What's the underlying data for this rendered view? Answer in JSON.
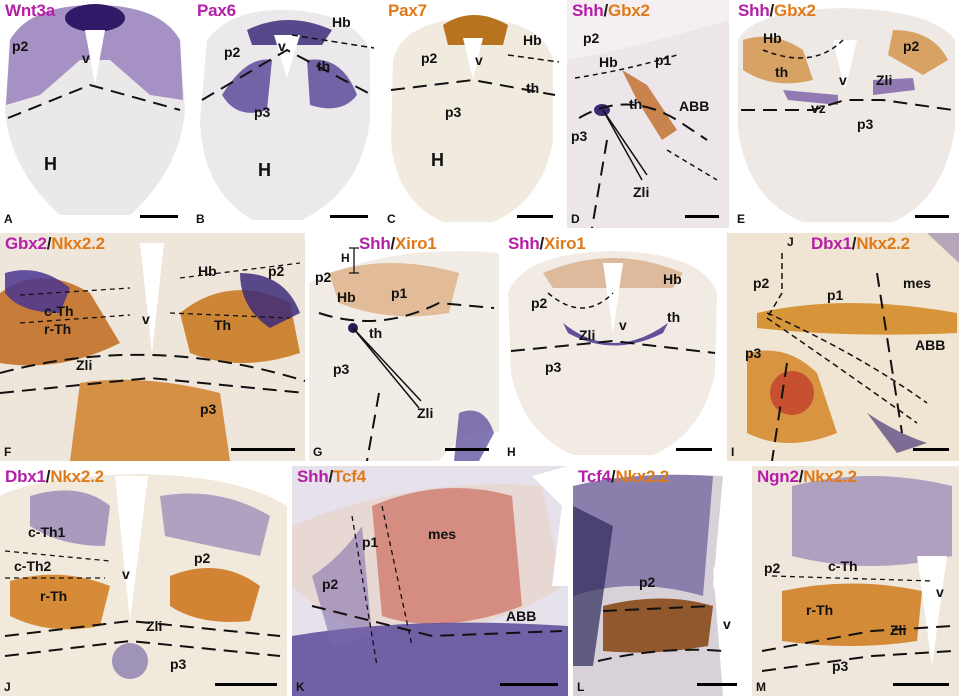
{
  "panels": [
    {
      "id": "A",
      "letter": "A",
      "stains": [
        {
          "text": "Wnt3a",
          "color": "magenta"
        }
      ],
      "labels": [
        "p2",
        "v",
        "H"
      ]
    },
    {
      "id": "B",
      "letter": "B",
      "stains": [
        {
          "text": "Pax6",
          "color": "magenta"
        }
      ],
      "labels": [
        "Hb",
        "v",
        "p2",
        "th",
        "p3",
        "H"
      ]
    },
    {
      "id": "C",
      "letter": "C",
      "stains": [
        {
          "text": "Pax7",
          "color": "orange"
        }
      ],
      "labels": [
        "Hb",
        "p2",
        "v",
        "th",
        "p3",
        "H"
      ]
    },
    {
      "id": "D",
      "letter": "D",
      "stains": [
        {
          "text": "Shh",
          "color": "magenta"
        },
        {
          "text": "Gbx2",
          "color": "orange"
        }
      ],
      "labels": [
        "p2",
        "Hb",
        "p1",
        "th",
        "ABB",
        "p3",
        "Zli"
      ]
    },
    {
      "id": "E",
      "letter": "E",
      "stains": [
        {
          "text": "Shh",
          "color": "magenta"
        },
        {
          "text": "Gbx2",
          "color": "orange"
        }
      ],
      "labels": [
        "Hb",
        "p2",
        "th",
        "v",
        "Zli",
        "vz",
        "p3"
      ]
    },
    {
      "id": "F",
      "letter": "F",
      "stains": [
        {
          "text": "Gbx2",
          "color": "magenta"
        },
        {
          "text": "Nkx2.2",
          "color": "orange"
        }
      ],
      "labels": [
        "Hb",
        "p2",
        "c-Th",
        "r-Th",
        "v",
        "Th",
        "Zli",
        "p3"
      ]
    },
    {
      "id": "G",
      "letter": "G",
      "stains": [
        {
          "text": "Shh",
          "color": "magenta"
        },
        {
          "text": "Xiro1",
          "color": "orange"
        }
      ],
      "labels": [
        "H",
        "p2",
        "Hb",
        "p1",
        "th",
        "p3",
        "Zli"
      ]
    },
    {
      "id": "H",
      "letter": "H",
      "stains": [
        {
          "text": "Shh",
          "color": "magenta"
        },
        {
          "text": "Xiro1",
          "color": "orange"
        }
      ],
      "labels": [
        "Hb",
        "p2",
        "th",
        "Zli",
        "v",
        "p3"
      ]
    },
    {
      "id": "I",
      "letter": "I",
      "stains": [
        {
          "text": "Dbx1",
          "color": "magenta"
        },
        {
          "text": "Nkx2.2",
          "color": "orange"
        }
      ],
      "labels": [
        "J",
        "p2",
        "p1",
        "mes",
        "ABB",
        "p3"
      ]
    },
    {
      "id": "J",
      "letter": "J",
      "stains": [
        {
          "text": "Dbx1",
          "color": "magenta"
        },
        {
          "text": "Nkx2.2",
          "color": "orange"
        }
      ],
      "labels": [
        "c-Th1",
        "c-Th2",
        "v",
        "p2",
        "r-Th",
        "Zli",
        "p3"
      ]
    },
    {
      "id": "K",
      "letter": "K",
      "stains": [
        {
          "text": "Shh",
          "color": "magenta"
        },
        {
          "text": "Tcf4",
          "color": "orange"
        }
      ],
      "labels": [
        "mes",
        "p1",
        "p2",
        "ABB"
      ]
    },
    {
      "id": "L",
      "letter": "L",
      "stains": [
        {
          "text": "Tcf4",
          "color": "magenta"
        },
        {
          "text": "Nkx2.2",
          "color": "orange"
        }
      ],
      "labels": [
        "p2",
        "v"
      ]
    },
    {
      "id": "M",
      "letter": "M",
      "stains": [
        {
          "text": "Ngn2",
          "color": "magenta"
        },
        {
          "text": "Nkx2.2",
          "color": "orange"
        }
      ],
      "labels": [
        "p2",
        "c-Th",
        "v",
        "r-Th",
        "Zli",
        "p3"
      ]
    }
  ],
  "colors": {
    "magenta": "#b51fa8",
    "orange": "#e07a18",
    "purple_stain": "#5a3d8f",
    "brown_stain": "#c77418",
    "tissue": "#ede9e6"
  }
}
